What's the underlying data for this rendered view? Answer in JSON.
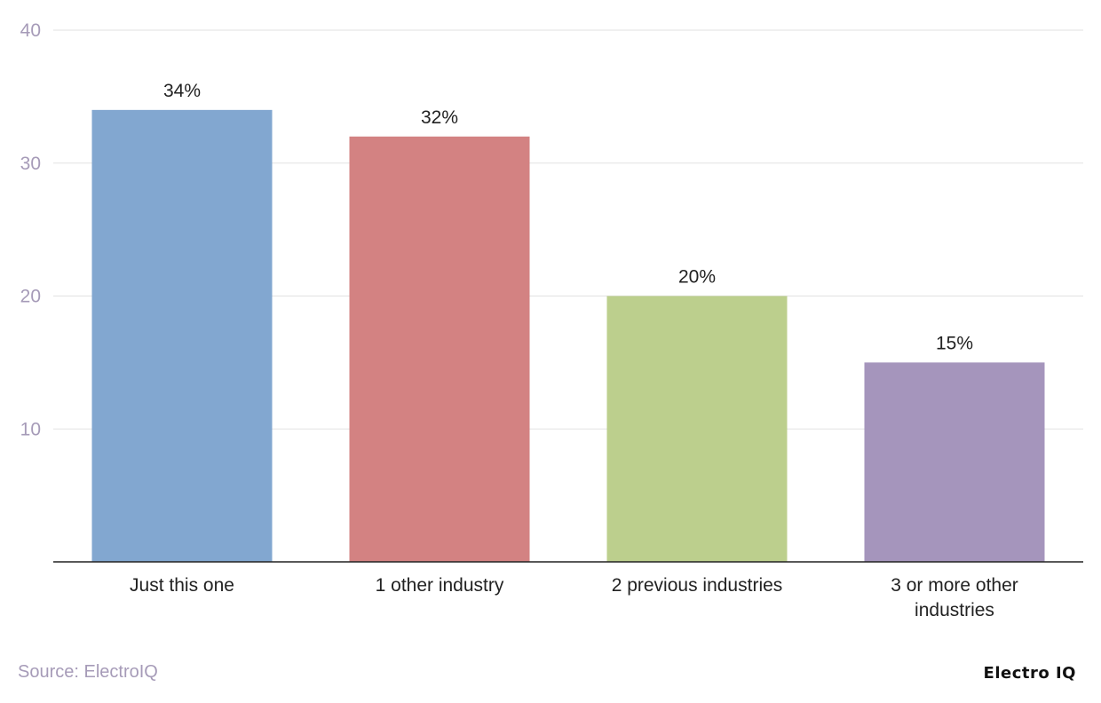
{
  "chart_data": {
    "type": "bar",
    "categories": [
      [
        "Just this one"
      ],
      [
        "1 other industry"
      ],
      [
        "2 previous industries"
      ],
      [
        "3 or more other",
        "industries"
      ]
    ],
    "values": [
      34,
      32,
      20,
      15
    ],
    "data_labels": [
      "34%",
      "32%",
      "20%",
      "15%"
    ],
    "colors": [
      "#82a7d0",
      "#d38282",
      "#bccf8d",
      "#a595bc"
    ],
    "yticks": [
      10,
      20,
      30,
      40
    ],
    "ylim": [
      0,
      40
    ],
    "grid": true
  },
  "footer": {
    "source": "Source: ElectroIQ",
    "brand": "Electro IQ"
  }
}
